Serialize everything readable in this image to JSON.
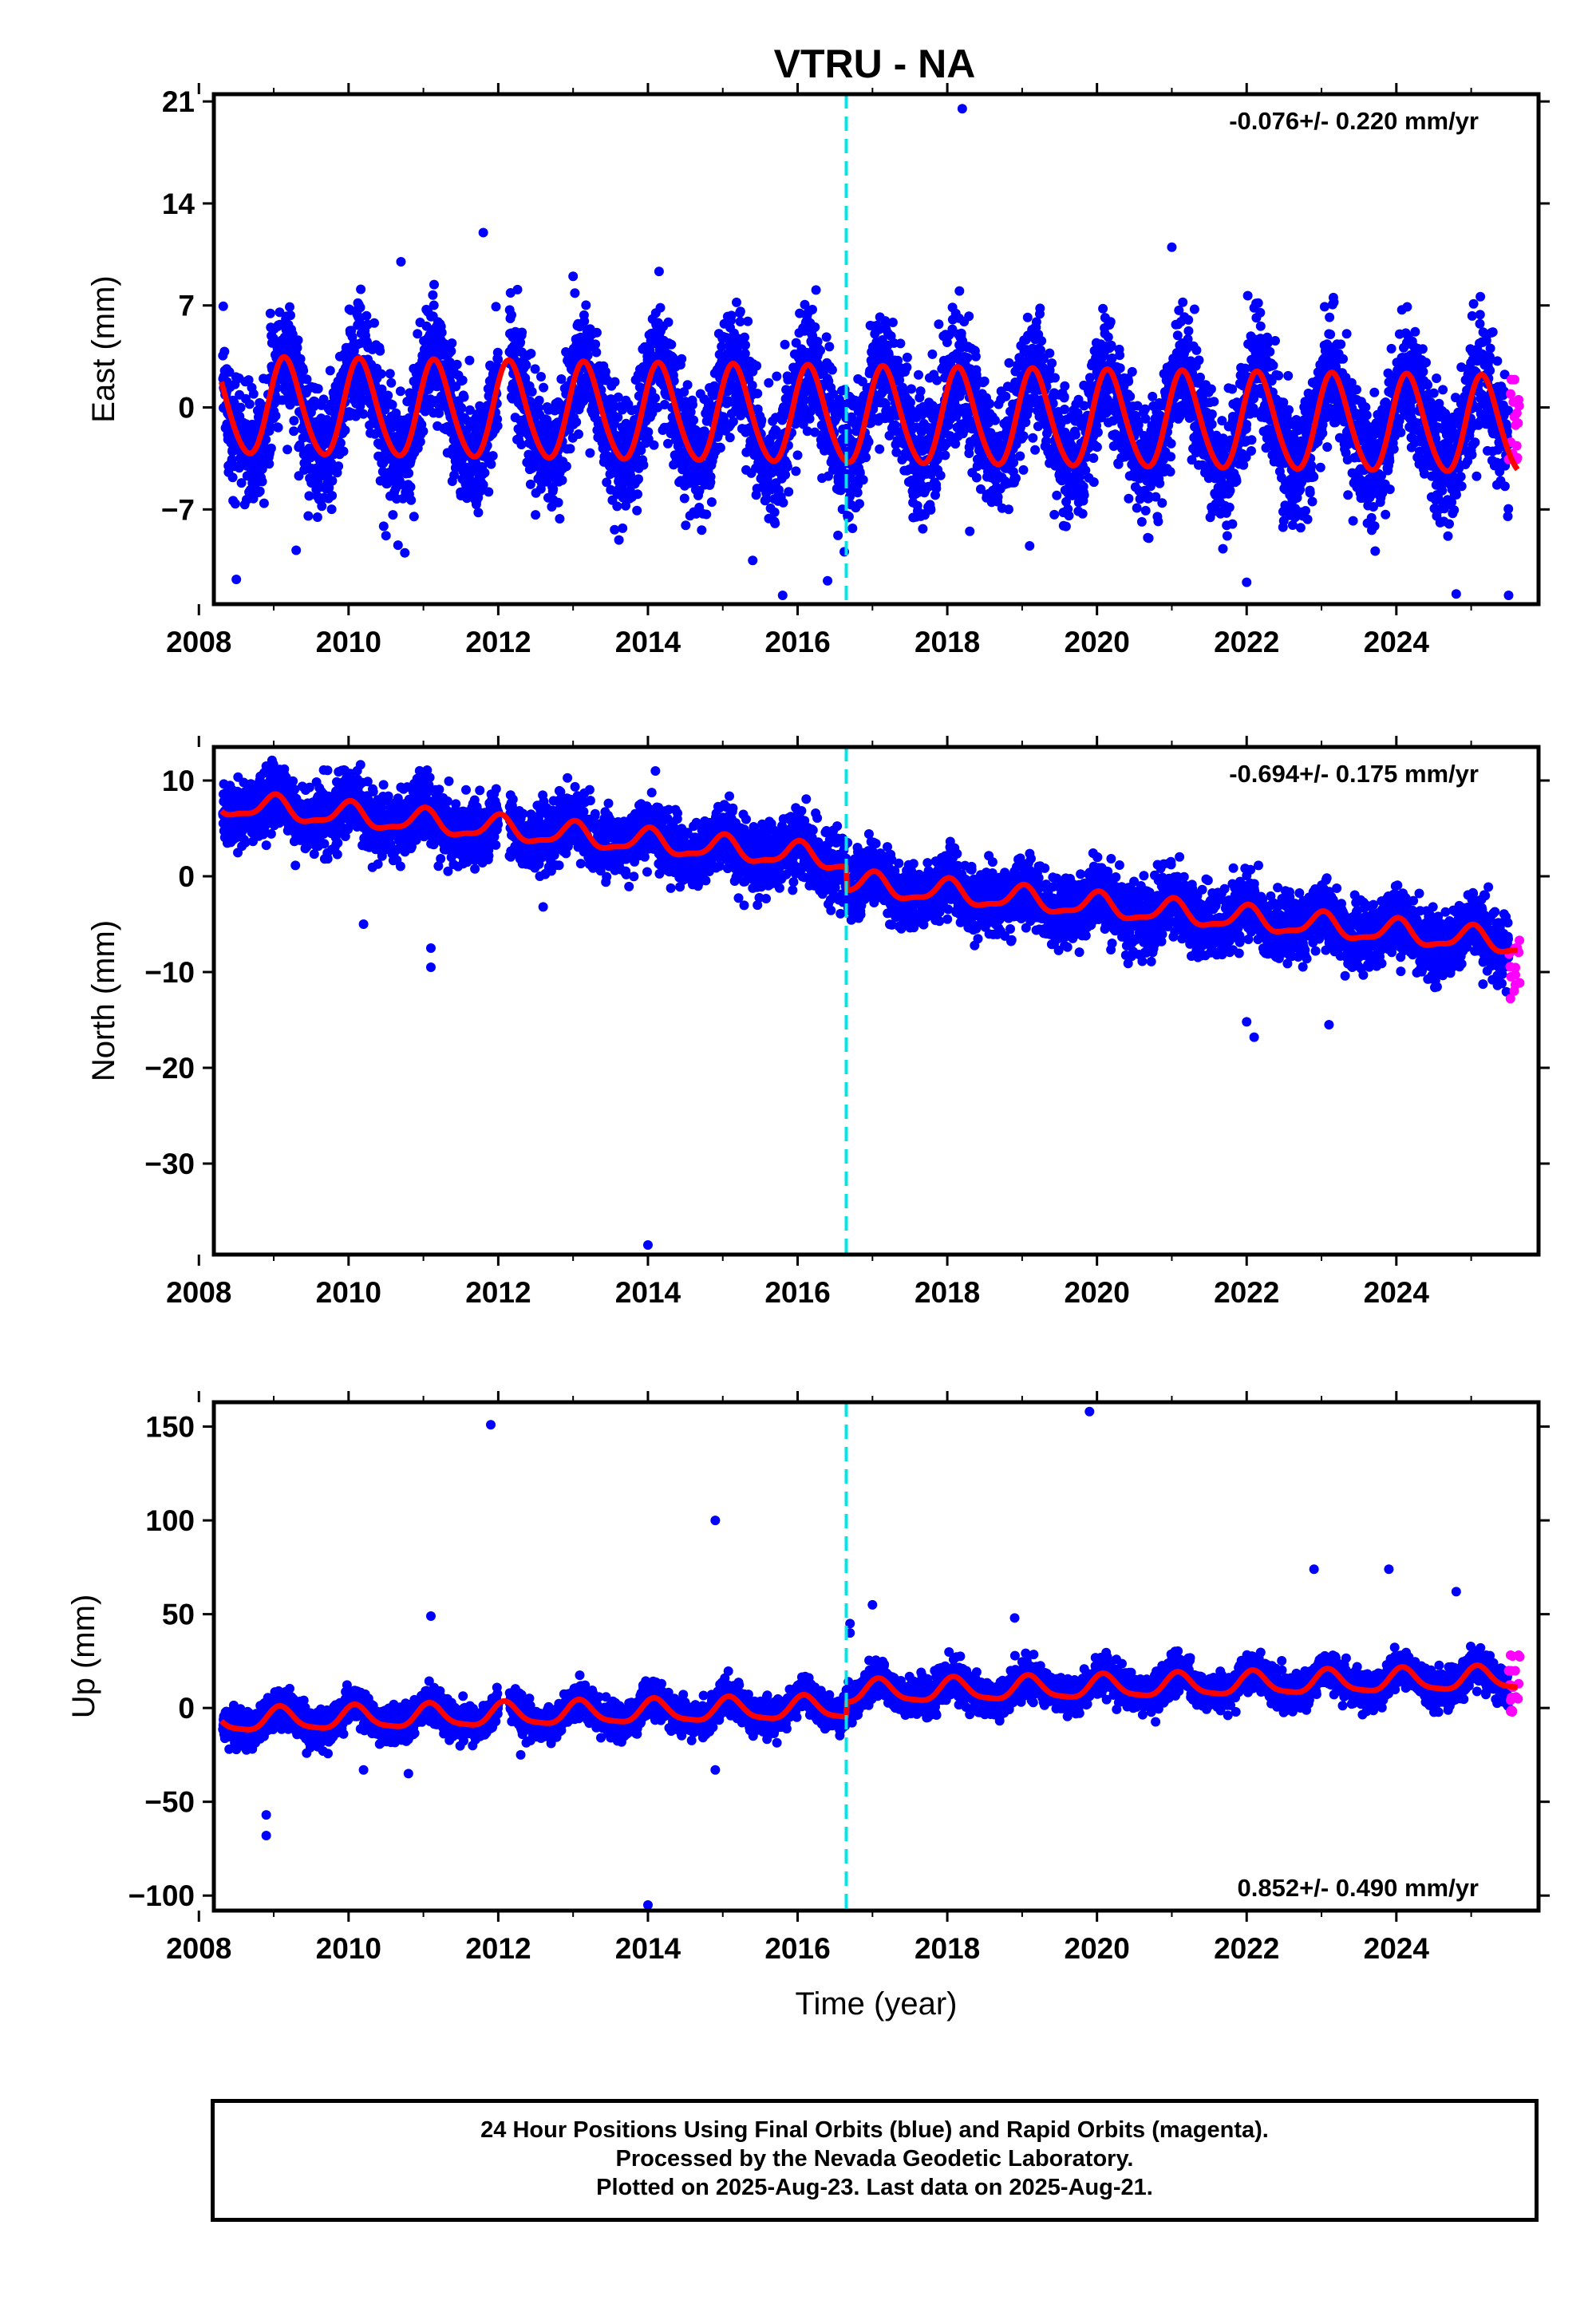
{
  "title": "VTRU - NA",
  "chart_data": [
    {
      "type": "scatter",
      "panel": "east",
      "ylabel": "East (mm)",
      "xlim": [
        2008.2,
        2025.9
      ],
      "ylim": [
        -13.5,
        21.5
      ],
      "yticks": [
        21,
        14,
        7,
        0,
        -7
      ],
      "xticks": [
        2008,
        2010,
        2012,
        2014,
        2016,
        2018,
        2020,
        2022,
        2024
      ],
      "rate_text": "-0.076+/- 0.220 mm/yr",
      "rate_position": "top-right",
      "equipment_change_year": 2016.65,
      "model": {
        "trend": [
          0,
          -0.076
        ],
        "annual_amplitude": 3.3,
        "annual_phase": 0.6,
        "semiannual_amplitude": 0.3,
        "scatter_sd": 2.0
      },
      "rapid_end_values": {
        "x_range": [
          2025.5,
          2025.65
        ],
        "values": [
          -3.5,
          -2,
          0,
          1
        ]
      },
      "outliers": [
        [
          2008.5,
          -11.8
        ],
        [
          2009.3,
          -9.8
        ],
        [
          2010.5,
          -8.8
        ],
        [
          2011.8,
          12.0
        ],
        [
          2015.4,
          -10.5
        ],
        [
          2015.8,
          -12.9
        ],
        [
          2016.4,
          -11.9
        ],
        [
          2018.2,
          20.5
        ],
        [
          2018.3,
          -8.5
        ],
        [
          2019.1,
          -9.5
        ],
        [
          2021.0,
          11.0
        ],
        [
          2022.0,
          -12.0
        ],
        [
          2024.8,
          -12.8
        ],
        [
          2025.5,
          -12.9
        ],
        [
          2010.7,
          10.0
        ],
        [
          2013.0,
          9.0
        ]
      ]
    },
    {
      "type": "scatter",
      "panel": "north",
      "ylabel": "North (mm)",
      "xlim": [
        2008.2,
        2025.9
      ],
      "ylim": [
        -39.5,
        13.5
      ],
      "yticks": [
        10,
        0,
        -10,
        -20,
        -30
      ],
      "xticks": [
        2008,
        2010,
        2012,
        2014,
        2016,
        2018,
        2020,
        2022,
        2024
      ],
      "rate_text": "-0.694+/- 0.175 mm/yr",
      "rate_position": "top-right",
      "equipment_change_year": 2016.65,
      "model": {
        "trend": [
          7.5,
          -0.694
        ],
        "offset_at_change": -2.5,
        "annual_amplitude": 1.2,
        "annual_phase": 1.5,
        "semiannual_amplitude": 0.4,
        "scatter_sd": 1.7
      },
      "rapid_end_values": {
        "x_range": [
          2025.5,
          2025.65
        ],
        "values": [
          -12,
          -10,
          -8.5,
          -7.5
        ]
      },
      "outliers": [
        [
          2014.0,
          -38.5
        ],
        [
          2011.1,
          -9.5
        ],
        [
          2011.1,
          -7.5
        ],
        [
          2014.1,
          11.0
        ],
        [
          2022.0,
          -15.2
        ],
        [
          2022.1,
          -16.8
        ],
        [
          2023.1,
          -15.5
        ],
        [
          2008.9,
          11.5
        ],
        [
          2010.2,
          -5.0
        ],
        [
          2012.6,
          -3.2
        ]
      ]
    },
    {
      "type": "scatter",
      "panel": "up",
      "ylabel": "Up (mm)",
      "xlabel": "Time (year)",
      "xlim": [
        2008.2,
        2025.9
      ],
      "ylim": [
        -108,
        163
      ],
      "yticks": [
        150,
        100,
        50,
        0,
        -50,
        -100
      ],
      "xticks": [
        2008,
        2010,
        2012,
        2014,
        2016,
        2018,
        2020,
        2022,
        2024
      ],
      "rate_text": "0.852+/- 0.490 mm/yr",
      "rate_position": "bottom-right",
      "equipment_change_year": 2016.65,
      "model": {
        "trend": [
          -7,
          0.852
        ],
        "offset_at_change": 8,
        "annual_amplitude": 6,
        "annual_phase": 1.0,
        "semiannual_amplitude": 1.5,
        "scatter_sd": 4.5
      },
      "rapid_end_values": {
        "x_range": [
          2025.5,
          2025.65
        ],
        "values": [
          -2,
          5,
          12,
          20,
          28
        ]
      },
      "outliers": [
        [
          2011.9,
          151
        ],
        [
          2019.9,
          158
        ],
        [
          2014.9,
          100
        ],
        [
          2011.1,
          49
        ],
        [
          2022.9,
          74
        ],
        [
          2023.9,
          74
        ],
        [
          2024.8,
          62
        ],
        [
          2008.9,
          -57
        ],
        [
          2008.9,
          -68
        ],
        [
          2014.0,
          -105
        ],
        [
          2017.0,
          55
        ],
        [
          2018.9,
          48
        ],
        [
          2016.7,
          45
        ],
        [
          2016.7,
          40
        ],
        [
          2010.8,
          -35
        ],
        [
          2014.9,
          -33
        ],
        [
          2010.2,
          -33
        ],
        [
          2012.3,
          -25
        ]
      ]
    }
  ],
  "caption": {
    "line1": "24 Hour Positions Using Final Orbits (blue) and Rapid Orbits (magenta).",
    "line2": "Processed by the Nevada Geodetic Laboratory.",
    "line3": "Plotted on 2025-Aug-23. Last data on 2025-Aug-21."
  },
  "colors": {
    "final_orbits": "#0000ff",
    "rapid_orbits": "#ff00ff",
    "model_fit": "#ff0000",
    "equipment_change": "#00e5e5",
    "frame": "#000000"
  }
}
